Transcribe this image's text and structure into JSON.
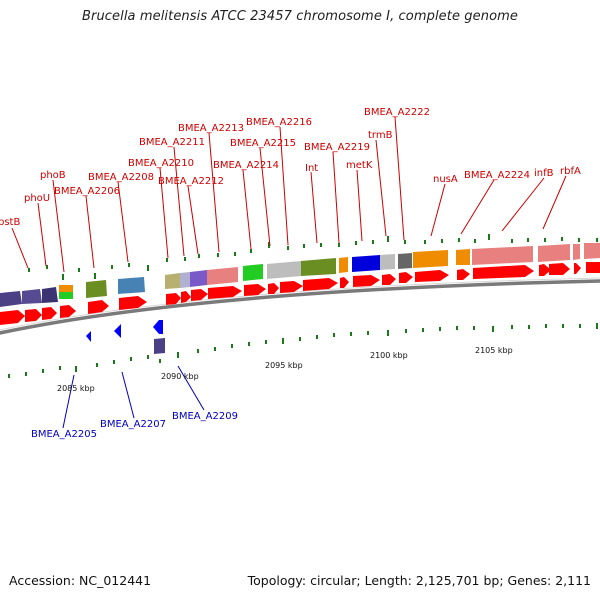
{
  "title": "Brucella melitensis ATCC 23457 chromosome I, complete genome",
  "footer": {
    "accession": "Accession: NC_012441",
    "topology": "Topology: circular; Length: 2,125,701 bp; Genes: 2,111"
  },
  "colors": {
    "forward_label": "#cc0000",
    "reverse_label": "#0000bb",
    "forward_arrow": "#ff0000",
    "reverse_arrow": "#0000ff",
    "backbone": "#888888",
    "tick": "#1a7a1a"
  },
  "scale_labels": [
    "2085 kbp",
    "2090 kbp",
    "2095 kbp",
    "2100 kbp",
    "2105 kbp"
  ],
  "forward_labels": [
    "pstB",
    "phoU",
    "phoB",
    "BMEA_A2206",
    "BMEA_A2208",
    "BMEA_A2210",
    "BMEA_A2211",
    "BMEA_A2212",
    "BMEA_A2213",
    "BMEA_A2214",
    "BMEA_A2215",
    "BMEA_A2216",
    "Int",
    "BMEA_A2219",
    "metK",
    "trmB",
    "BMEA_A2222",
    "nusA",
    "BMEA_A2224",
    "infB",
    "rbfA"
  ],
  "reverse_labels": [
    "BMEA_A2205",
    "BMEA_A2207",
    "BMEA_A2209"
  ]
}
